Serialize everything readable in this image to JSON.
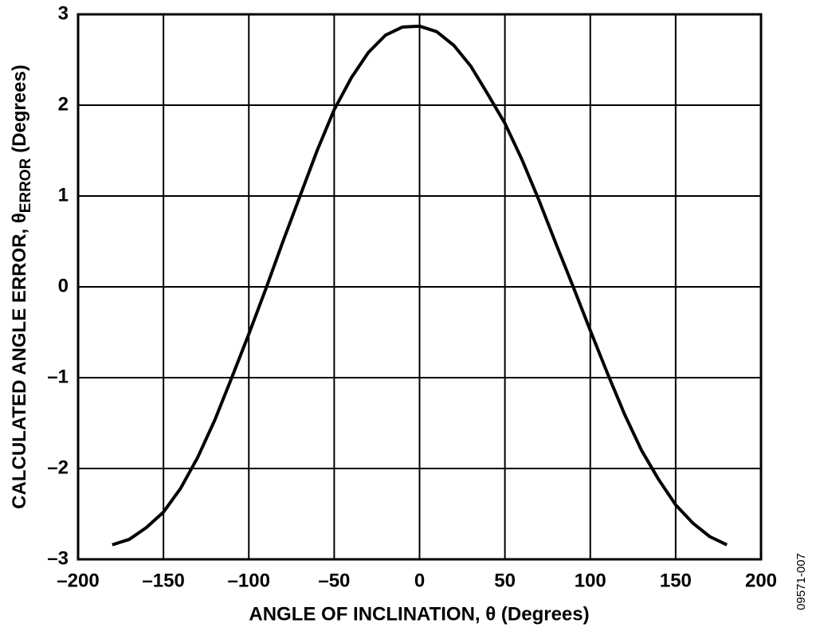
{
  "chart_data": {
    "type": "line",
    "x_label": "ANGLE OF INCLINATION, θ (Degrees)",
    "y_label": {
      "main": "CALCULATED ANGLE ERROR, θ",
      "subscript": "ERROR",
      "unit": " (Degrees)"
    },
    "annotation": "09571-007",
    "x": [
      -180,
      -170,
      -160,
      -150,
      -140,
      -130,
      -120,
      -110,
      -100,
      -90,
      -80,
      -70,
      -60,
      -50,
      -40,
      -30,
      -20,
      -10,
      0,
      10,
      20,
      30,
      40,
      50,
      60,
      70,
      80,
      90,
      100,
      110,
      120,
      130,
      140,
      150,
      160,
      170,
      180
    ],
    "series": [
      {
        "color": "#000000",
        "values": [
          -2.84,
          -2.78,
          -2.65,
          -2.48,
          -2.22,
          -1.88,
          -1.47,
          -1.0,
          -0.52,
          -0.02,
          0.5,
          1.0,
          1.5,
          1.95,
          2.3,
          2.58,
          2.77,
          2.86,
          2.87,
          2.81,
          2.66,
          2.43,
          2.12,
          1.8,
          1.4,
          0.95,
          0.47,
          0.0,
          -0.48,
          -0.95,
          -1.4,
          -1.8,
          -2.12,
          -2.4,
          -2.6,
          -2.75,
          -2.84
        ]
      }
    ],
    "xlim": [
      -200,
      200
    ],
    "xticks": [
      {
        "value": -200,
        "label": "–200"
      },
      {
        "value": -150,
        "label": "–150"
      },
      {
        "value": -100,
        "label": "–100"
      },
      {
        "value": -50,
        "label": "–50"
      },
      0,
      50,
      100,
      150,
      200
    ],
    "ylim": [
      -3,
      3
    ],
    "yticks": [
      {
        "value": -3,
        "label": "–3"
      },
      {
        "value": -2,
        "label": "–2"
      },
      {
        "value": -1,
        "label": "–1"
      },
      0,
      1,
      2,
      3
    ],
    "grid": true
  }
}
